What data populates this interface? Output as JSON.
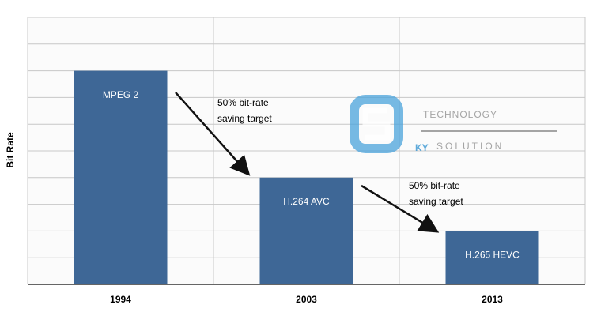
{
  "chart_data": {
    "type": "bar",
    "y_label": "Bit Rate",
    "categories": [
      "1994",
      "2003",
      "2013"
    ],
    "values": [
      8,
      4,
      2
    ],
    "bar_labels": [
      "MPEG 2",
      "H.264 AVC",
      "H.265 HEVC"
    ],
    "color": "#3e6796",
    "ylim": [
      0,
      10
    ],
    "yticks": [
      0,
      1,
      2,
      3,
      4,
      5,
      6,
      7,
      8,
      9,
      10
    ],
    "ytick_labels": false,
    "grid": true,
    "annotations": [
      {
        "text": [
          "50% bit-rate",
          "saving target"
        ]
      },
      {
        "text": [
          "50% bit-rate",
          "saving target"
        ]
      }
    ],
    "watermark": {
      "line1": "TECHNOLOGY",
      "prefix": "KY",
      "line2": "SOLUTION"
    }
  }
}
